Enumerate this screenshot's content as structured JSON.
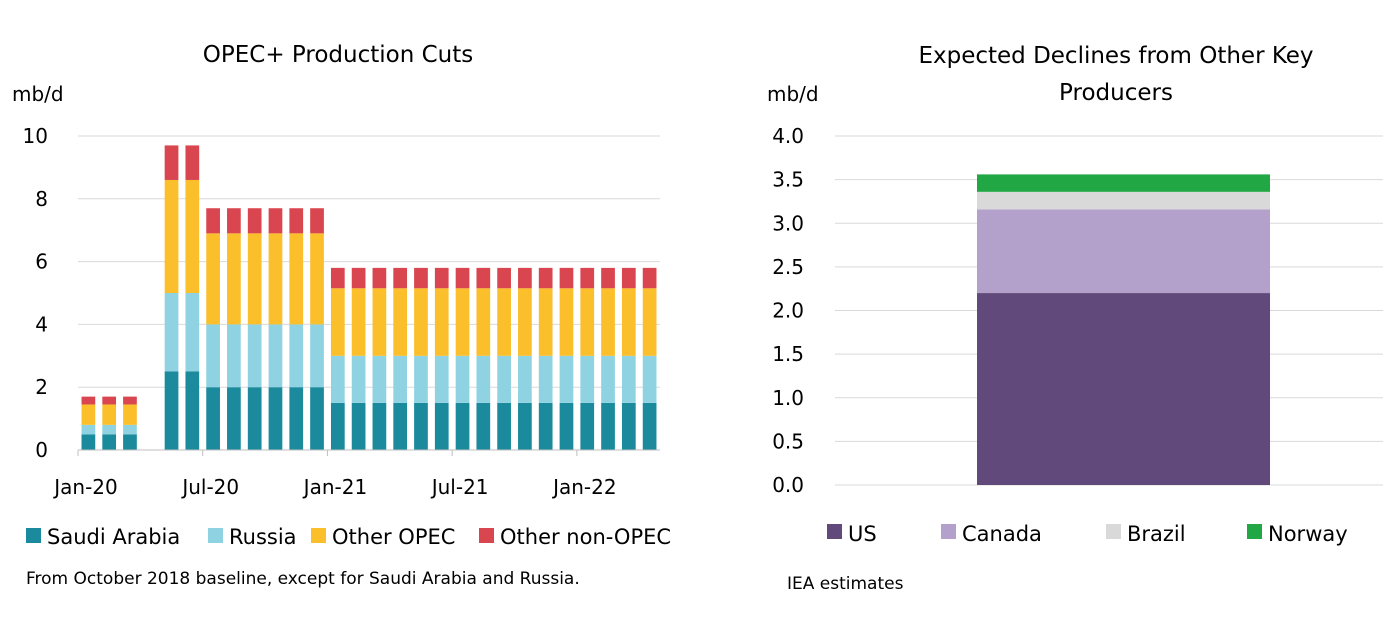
{
  "chart_data": [
    {
      "type": "bar",
      "stacked": true,
      "title": "OPEC+ Production Cuts",
      "ylabel": "mb/d",
      "ylim": [
        0,
        10
      ],
      "yticks": [
        "0",
        "2",
        "4",
        "6",
        "8",
        "10"
      ],
      "xtick_labels": [
        "Jan-20",
        "Jul-20",
        "Jan-21",
        "Jul-21",
        "Jan-22"
      ],
      "categories": [
        "Jan-20",
        "Feb-20",
        "Mar-20",
        "Apr-20",
        "May-20",
        "Jun-20",
        "Jul-20",
        "Aug-20",
        "Sep-20",
        "Oct-20",
        "Nov-20",
        "Dec-20",
        "Jan-21",
        "Feb-21",
        "Mar-21",
        "Apr-21",
        "May-21",
        "Jun-21",
        "Jul-21",
        "Aug-21",
        "Sep-21",
        "Oct-21",
        "Nov-21",
        "Dec-21",
        "Jan-22",
        "Feb-22",
        "Mar-22",
        "Apr-22"
      ],
      "series": [
        {
          "name": "Saudi Arabia",
          "color": "#1a8a9c",
          "values": [
            0.5,
            0.5,
            0.5,
            null,
            2.5,
            2.5,
            2.0,
            2.0,
            2.0,
            2.0,
            2.0,
            2.0,
            1.5,
            1.5,
            1.5,
            1.5,
            1.5,
            1.5,
            1.5,
            1.5,
            1.5,
            1.5,
            1.5,
            1.5,
            1.5,
            1.5,
            1.5,
            1.5
          ]
        },
        {
          "name": "Russia",
          "color": "#8fd3e2",
          "values": [
            0.3,
            0.3,
            0.3,
            null,
            2.5,
            2.5,
            2.0,
            2.0,
            2.0,
            2.0,
            2.0,
            2.0,
            1.5,
            1.5,
            1.5,
            1.5,
            1.5,
            1.5,
            1.5,
            1.5,
            1.5,
            1.5,
            1.5,
            1.5,
            1.5,
            1.5,
            1.5,
            1.5
          ]
        },
        {
          "name": "Other OPEC",
          "color": "#fbbf2c",
          "values": [
            0.65,
            0.65,
            0.65,
            null,
            3.6,
            3.6,
            2.9,
            2.9,
            2.9,
            2.9,
            2.9,
            2.9,
            2.15,
            2.15,
            2.15,
            2.15,
            2.15,
            2.15,
            2.15,
            2.15,
            2.15,
            2.15,
            2.15,
            2.15,
            2.15,
            2.15,
            2.15,
            2.15
          ]
        },
        {
          "name": "Other non-OPEC",
          "color": "#d9464f",
          "values": [
            0.25,
            0.25,
            0.25,
            null,
            1.1,
            1.1,
            0.8,
            0.8,
            0.8,
            0.8,
            0.8,
            0.8,
            0.65,
            0.65,
            0.65,
            0.65,
            0.65,
            0.65,
            0.65,
            0.65,
            0.65,
            0.65,
            0.65,
            0.65,
            0.65,
            0.65,
            0.65,
            0.65
          ]
        }
      ],
      "note": "From October 2018 baseline, except for Saudi Arabia and Russia.",
      "grid": true,
      "legend_position": "bottom"
    },
    {
      "type": "bar",
      "stacked": true,
      "title_lines": [
        "Expected Declines from Other Key",
        "Producers"
      ],
      "ylabel": "mb/d",
      "ylim": [
        0,
        4.0
      ],
      "yticks": [
        "0.0",
        "0.5",
        "1.0",
        "1.5",
        "2.0",
        "2.5",
        "3.0",
        "3.5",
        "4.0"
      ],
      "categories": [
        ""
      ],
      "series": [
        {
          "name": "US",
          "color": "#614a7b",
          "values": [
            2.2
          ]
        },
        {
          "name": "Canada",
          "color": "#b4a1cb",
          "values": [
            0.96
          ]
        },
        {
          "name": "Brazil",
          "color": "#d9d9d9",
          "values": [
            0.2
          ]
        },
        {
          "name": "Norway",
          "color": "#22a745",
          "values": [
            0.2
          ]
        }
      ],
      "note": "IEA estimates",
      "grid": true,
      "legend_position": "bottom"
    }
  ]
}
